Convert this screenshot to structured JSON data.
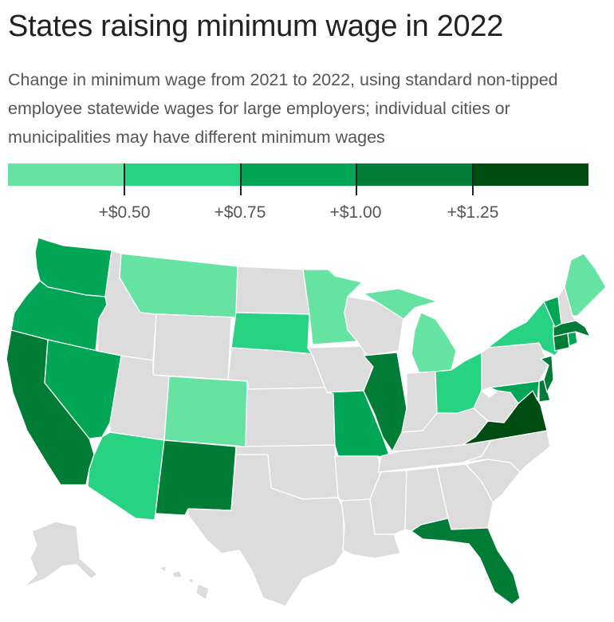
{
  "title": "States raising minimum wage in 2022",
  "subtitle": "Change in minimum wage from 2021 to 2022, using standard non-tipped employee statewide wages for large employers; individual cities or municipalities may have different minimum wages",
  "legend": {
    "colors": [
      "#66e3a2",
      "#27d383",
      "#00a655",
      "#007c37",
      "#004d11"
    ],
    "tick_labels": [
      "+$0.50",
      "+$0.75",
      "+$1.00",
      "+$1.25"
    ]
  },
  "map": {
    "no_change_color": "#dcdcdc",
    "states": [
      {
        "id": "WA",
        "bin": 3
      },
      {
        "id": "OR",
        "bin": 3
      },
      {
        "id": "CA",
        "bin": 4
      },
      {
        "id": "NV",
        "bin": 3
      },
      {
        "id": "AZ",
        "bin": 2
      },
      {
        "id": "NM",
        "bin": 4
      },
      {
        "id": "CO",
        "bin": 1
      },
      {
        "id": "MT",
        "bin": 1
      },
      {
        "id": "SD",
        "bin": 2
      },
      {
        "id": "MN",
        "bin": 1
      },
      {
        "id": "MI",
        "bin": 1
      },
      {
        "id": "OH",
        "bin": 2
      },
      {
        "id": "IL",
        "bin": 4
      },
      {
        "id": "MO",
        "bin": 3
      },
      {
        "id": "FL",
        "bin": 4
      },
      {
        "id": "VA",
        "bin": 5
      },
      {
        "id": "NY",
        "bin": 2
      },
      {
        "id": "VT",
        "bin": 3
      },
      {
        "id": "ME",
        "bin": 1
      },
      {
        "id": "NJ",
        "bin": 4
      },
      {
        "id": "DE",
        "bin": 4
      },
      {
        "id": "MD",
        "bin": 3
      },
      {
        "id": "CT",
        "bin": 4
      },
      {
        "id": "MA",
        "bin": 4
      },
      {
        "id": "RI",
        "bin": 3
      },
      {
        "id": "ID",
        "bin": 0
      },
      {
        "id": "WY",
        "bin": 0
      },
      {
        "id": "UT",
        "bin": 0
      },
      {
        "id": "ND",
        "bin": 0
      },
      {
        "id": "NE",
        "bin": 0
      },
      {
        "id": "KS",
        "bin": 0
      },
      {
        "id": "OK",
        "bin": 0
      },
      {
        "id": "TX",
        "bin": 0
      },
      {
        "id": "IA",
        "bin": 0
      },
      {
        "id": "WI",
        "bin": 0
      },
      {
        "id": "AR",
        "bin": 0
      },
      {
        "id": "LA",
        "bin": 0
      },
      {
        "id": "MS",
        "bin": 0
      },
      {
        "id": "AL",
        "bin": 0
      },
      {
        "id": "GA",
        "bin": 0
      },
      {
        "id": "TN",
        "bin": 0
      },
      {
        "id": "KY",
        "bin": 0
      },
      {
        "id": "IN",
        "bin": 0
      },
      {
        "id": "WV",
        "bin": 0
      },
      {
        "id": "PA",
        "bin": 0
      },
      {
        "id": "NC",
        "bin": 0
      },
      {
        "id": "SC",
        "bin": 0
      },
      {
        "id": "NH",
        "bin": 0
      },
      {
        "id": "AK",
        "bin": 0
      },
      {
        "id": "HI",
        "bin": 0
      }
    ]
  }
}
